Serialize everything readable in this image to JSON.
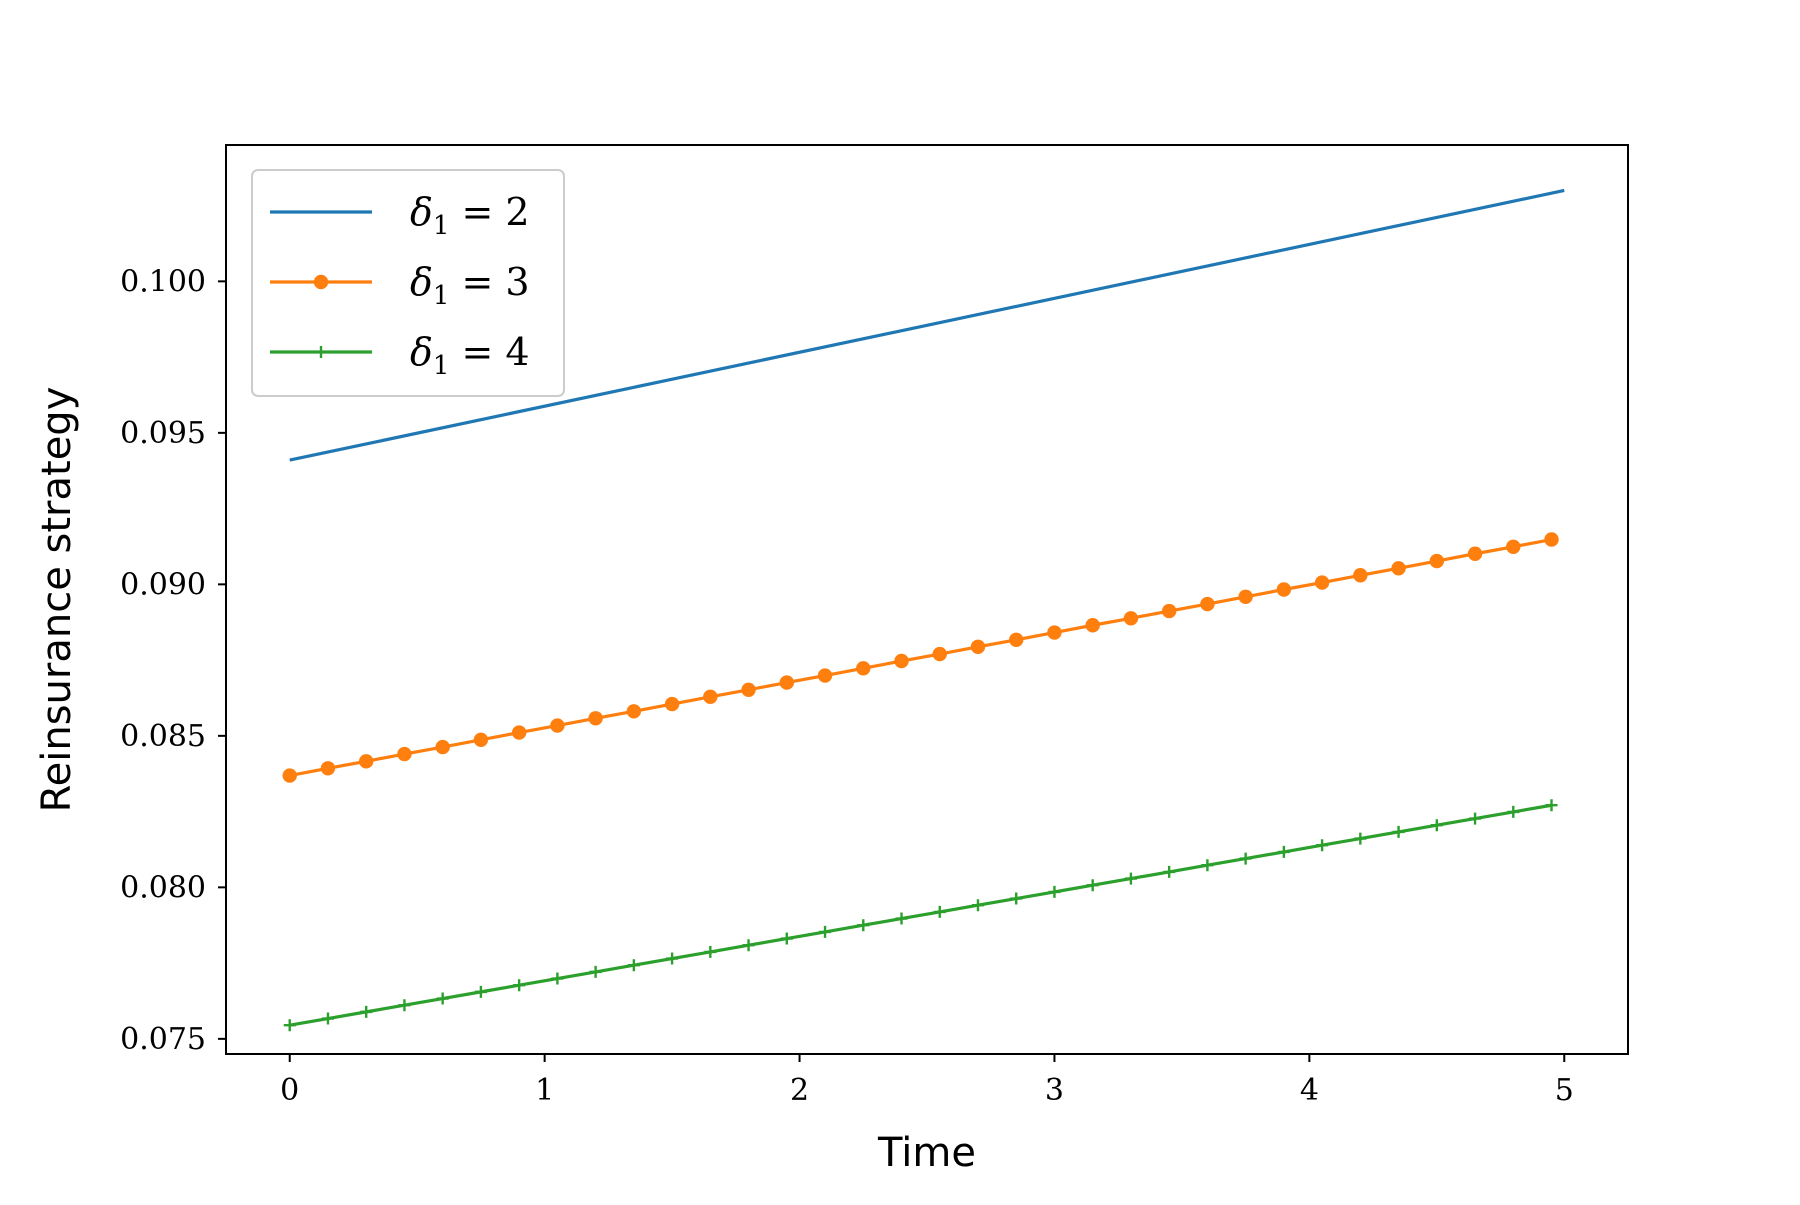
{
  "chart_data": {
    "type": "line",
    "xlabel": "Time",
    "ylabel": "Reinsurance strategy",
    "xlim": [
      -0.25,
      5.25
    ],
    "ylim": [
      0.0745,
      0.1045
    ],
    "xticks": [
      0,
      1,
      2,
      3,
      4,
      5
    ],
    "xtick_labels": [
      "0",
      "1",
      "2",
      "3",
      "4",
      "5"
    ],
    "yticks": [
      0.075,
      0.08,
      0.085,
      0.09,
      0.095,
      0.1
    ],
    "ytick_labels": [
      "0.075",
      "0.080",
      "0.085",
      "0.090",
      "0.095",
      "0.100"
    ],
    "grid": false,
    "legend_position": "top-left",
    "series": [
      {
        "name": "δ1 = 2",
        "legend": {
          "symbol": "δ",
          "subscript": "1",
          "rest": " = 2"
        },
        "color": "#1f77b4",
        "marker": "none",
        "x": [
          0,
          5
        ],
        "y": [
          0.0941,
          0.103
        ]
      },
      {
        "name": "δ1 = 3",
        "legend": {
          "symbol": "δ",
          "subscript": "1",
          "rest": " = 3"
        },
        "color": "#ff7f0e",
        "marker": "circle",
        "x": [
          0,
          0.15,
          0.3,
          0.45,
          0.6,
          0.75,
          0.9,
          1.05,
          1.2,
          1.35,
          1.5,
          1.65,
          1.8,
          1.95,
          2.1,
          2.25,
          2.4,
          2.55,
          2.7,
          2.85,
          3.0,
          3.15,
          3.3,
          3.45,
          3.6,
          3.75,
          3.9,
          4.05,
          4.2,
          4.35,
          4.5,
          4.65,
          4.8,
          4.95
        ],
        "y": [
          0.08369,
          0.08393,
          0.08416,
          0.0844,
          0.08463,
          0.08487,
          0.08511,
          0.08534,
          0.08558,
          0.08581,
          0.08605,
          0.08629,
          0.08652,
          0.08676,
          0.08699,
          0.08723,
          0.08747,
          0.0877,
          0.08794,
          0.08817,
          0.08841,
          0.08865,
          0.08888,
          0.08912,
          0.08935,
          0.08959,
          0.08983,
          0.09006,
          0.0903,
          0.09053,
          0.09077,
          0.09101,
          0.09124,
          0.09148
        ]
      },
      {
        "name": "δ1 = 4",
        "legend": {
          "symbol": "δ",
          "subscript": "1",
          "rest": " = 4"
        },
        "color": "#2ca02c",
        "marker": "plus",
        "x": [
          0,
          0.15,
          0.3,
          0.45,
          0.6,
          0.75,
          0.9,
          1.05,
          1.2,
          1.35,
          1.5,
          1.65,
          1.8,
          1.95,
          2.1,
          2.25,
          2.4,
          2.55,
          2.7,
          2.85,
          3.0,
          3.15,
          3.3,
          3.45,
          3.6,
          3.75,
          3.9,
          4.05,
          4.2,
          4.35,
          4.5,
          4.65,
          4.8,
          4.95
        ],
        "y": [
          0.07545,
          0.07567,
          0.07589,
          0.07611,
          0.07633,
          0.07655,
          0.07677,
          0.07699,
          0.07721,
          0.07743,
          0.07765,
          0.07787,
          0.07809,
          0.07831,
          0.07853,
          0.07875,
          0.07897,
          0.07919,
          0.07941,
          0.07963,
          0.07985,
          0.08007,
          0.08029,
          0.08051,
          0.08073,
          0.08095,
          0.08117,
          0.08139,
          0.08161,
          0.08183,
          0.08205,
          0.08227,
          0.08249,
          0.08271
        ]
      }
    ]
  }
}
